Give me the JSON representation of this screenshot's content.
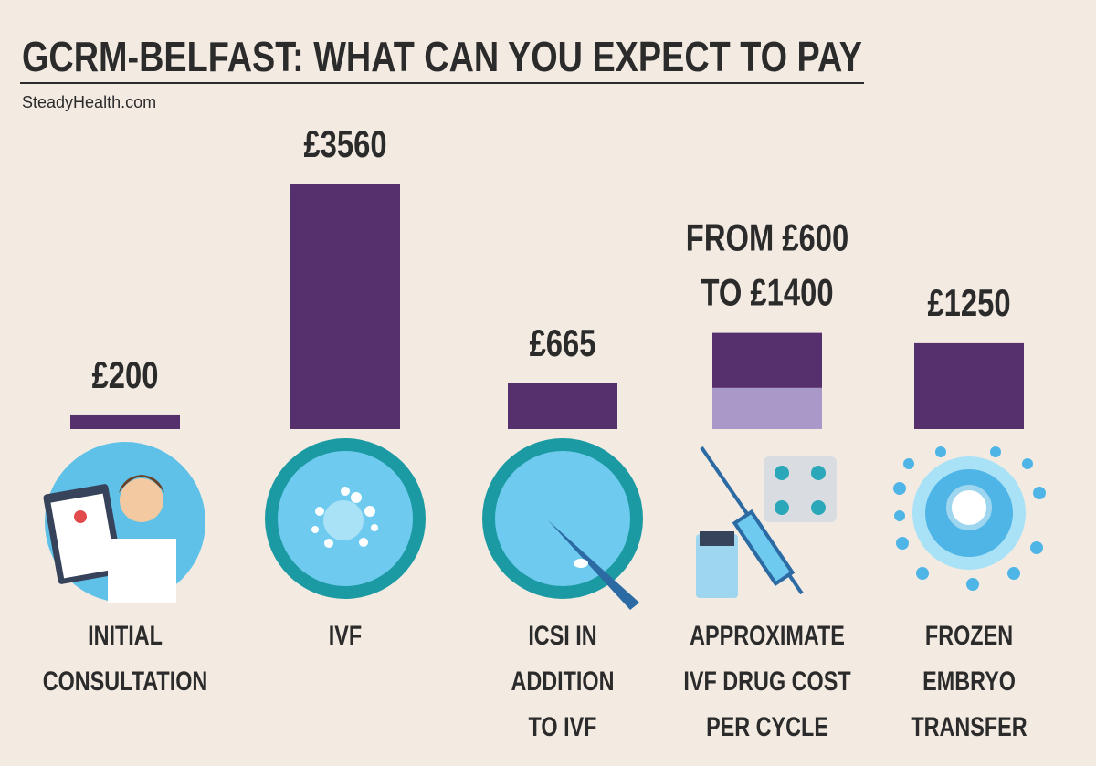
{
  "chart_data": {
    "type": "bar",
    "title": "GCRM-BELFAST: WHAT CAN YOU EXPECT TO PAY",
    "source": {
      "prefix": "Steady",
      "bold": "Health",
      "suffix": ".com"
    },
    "categories": [
      "INITIAL\nCONSULTATION",
      "IVF",
      "ICSI IN\nADDITION\nTO IVF",
      "APPROXIMATE\nIVF DRUG COST\nPER CYCLE",
      "FROZEN\nEMBRYO\nTRANSFER"
    ],
    "values": [
      200,
      3560,
      665,
      1400,
      1250
    ],
    "low": [
      null,
      null,
      null,
      600,
      null
    ],
    "value_labels": [
      "£200",
      "£3560",
      "£665",
      "FROM £600\nTO £1400",
      "£1250"
    ],
    "color": "#56306d",
    "low_color": "#a899c9",
    "ylim": [
      0,
      3600
    ]
  }
}
